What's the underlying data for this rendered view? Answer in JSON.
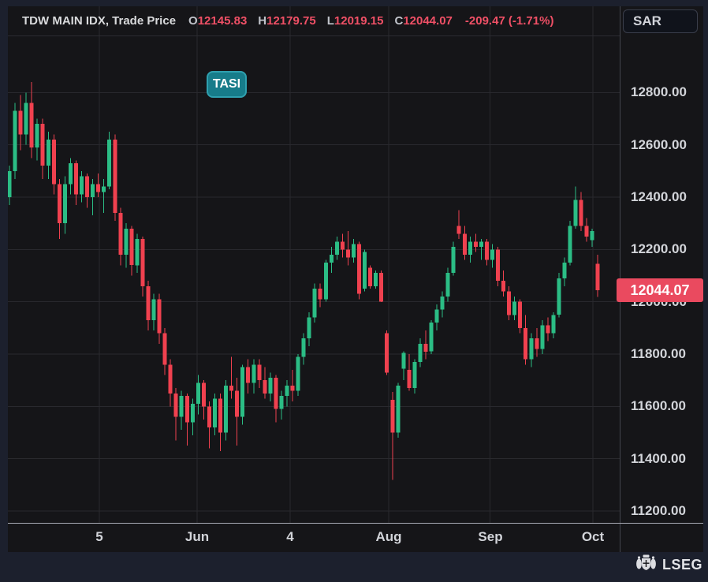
{
  "header": {
    "instrument": "TDW MAIN IDX, Trade Price",
    "ohlc": [
      {
        "key": "O",
        "value": "12145.83"
      },
      {
        "key": "H",
        "value": "12179.75"
      },
      {
        "key": "L",
        "value": "12019.15"
      },
      {
        "key": "C",
        "value": "12044.07"
      }
    ],
    "change": "-209.47 (-1.71%)"
  },
  "currency_chip": "SAR",
  "symbol_badge": "TASI",
  "price_label": "12044.07",
  "watermark": "LSEG",
  "colors": {
    "up": "#2bbd85",
    "down": "#f0414f",
    "grid": "#29292e",
    "plot_bg": "#151518",
    "outer_bg": "#1c202d",
    "price_label_bg": "#ea4a5f",
    "badge_teal": "#177c8a",
    "value_red": "#f05066",
    "axis_text": "#d2d4d9"
  },
  "chart_data": {
    "type": "candlestick",
    "title": "TDW MAIN IDX, Trade Price",
    "currency": "SAR",
    "legend": "TASI",
    "last_price": 12044.07,
    "last_price_label": "12044.07",
    "grid": true,
    "y_axis_position": "right",
    "y_ticks": [
      "12800.00",
      "12600.00",
      "12400.00",
      "12200.00",
      "12000.00",
      "11800.00",
      "11600.00",
      "11400.00",
      "11200.00"
    ],
    "y_tick_values": [
      12800,
      12600,
      12400,
      12200,
      12000,
      11800,
      11600,
      11400,
      11200
    ],
    "price_top": 13015,
    "price_bottom": 11155,
    "x_ticks": [
      {
        "label": "5",
        "i": 16.2
      },
      {
        "label": "Jun",
        "i": 33.8
      },
      {
        "label": "4",
        "i": 50.6
      },
      {
        "label": "Aug",
        "i": 68.3
      },
      {
        "label": "Sep",
        "i": 86.6
      },
      {
        "label": "Oct",
        "i": 105.1
      }
    ],
    "x_start": 2,
    "x_step": 7.04,
    "candle_width": 5,
    "candles_format": [
      "open",
      "high",
      "low",
      "close"
    ],
    "candles": [
      [
        12400,
        12520,
        12370,
        12500
      ],
      [
        12500,
        12760,
        12470,
        12730
      ],
      [
        12730,
        12790,
        12580,
        12640
      ],
      [
        12640,
        12800,
        12600,
        12760
      ],
      [
        12760,
        12840,
        12550,
        12590
      ],
      [
        12590,
        12700,
        12540,
        12680
      ],
      [
        12680,
        12700,
        12470,
        12520
      ],
      [
        12520,
        12650,
        12470,
        12620
      ],
      [
        12620,
        12640,
        12410,
        12450
      ],
      [
        12450,
        12470,
        12240,
        12300
      ],
      [
        12300,
        12480,
        12260,
        12450
      ],
      [
        12450,
        12550,
        12410,
        12530
      ],
      [
        12530,
        12540,
        12370,
        12410
      ],
      [
        12410,
        12500,
        12380,
        12480
      ],
      [
        12480,
        12490,
        12360,
        12400
      ],
      [
        12400,
        12470,
        12330,
        12450
      ],
      [
        12450,
        12490,
        12400,
        12420
      ],
      [
        12420,
        12470,
        12340,
        12440
      ],
      [
        12440,
        12650,
        12430,
        12620
      ],
      [
        12620,
        12640,
        12310,
        12340
      ],
      [
        12340,
        12360,
        12140,
        12180
      ],
      [
        12180,
        12300,
        12130,
        12280
      ],
      [
        12280,
        12290,
        12100,
        12140
      ],
      [
        12140,
        12260,
        12110,
        12240
      ],
      [
        12240,
        12250,
        12020,
        12060
      ],
      [
        12060,
        12080,
        11890,
        11930
      ],
      [
        11930,
        12030,
        11890,
        12010
      ],
      [
        12010,
        12030,
        11840,
        11880
      ],
      [
        11880,
        11900,
        11720,
        11760
      ],
      [
        11760,
        11780,
        11600,
        11650
      ],
      [
        11650,
        11670,
        11470,
        11560
      ],
      [
        11560,
        11660,
        11510,
        11640
      ],
      [
        11640,
        11650,
        11450,
        11540
      ],
      [
        11540,
        11630,
        11490,
        11610
      ],
      [
        11610,
        11720,
        11570,
        11690
      ],
      [
        11690,
        11700,
        11550,
        11600
      ],
      [
        11600,
        11620,
        11440,
        11520
      ],
      [
        11520,
        11650,
        11490,
        11630
      ],
      [
        11630,
        11650,
        11430,
        11500
      ],
      [
        11500,
        11700,
        11470,
        11680
      ],
      [
        11680,
        11790,
        11630,
        11660
      ],
      [
        11660,
        11710,
        11450,
        11560
      ],
      [
        11560,
        11760,
        11530,
        11750
      ],
      [
        11750,
        11780,
        11650,
        11690
      ],
      [
        11690,
        11780,
        11650,
        11760
      ],
      [
        11760,
        11780,
        11670,
        11700
      ],
      [
        11700,
        11750,
        11630,
        11650
      ],
      [
        11650,
        11730,
        11620,
        11710
      ],
      [
        11710,
        11720,
        11540,
        11590
      ],
      [
        11590,
        11660,
        11550,
        11640
      ],
      [
        11640,
        11700,
        11600,
        11680
      ],
      [
        11680,
        11740,
        11620,
        11660
      ],
      [
        11660,
        11800,
        11640,
        11790
      ],
      [
        11790,
        11880,
        11760,
        11860
      ],
      [
        11860,
        11960,
        11830,
        11940
      ],
      [
        11940,
        12070,
        11920,
        12050
      ],
      [
        12050,
        12070,
        11980,
        12010
      ],
      [
        12010,
        12160,
        12000,
        12150
      ],
      [
        12150,
        12210,
        12110,
        12180
      ],
      [
        12180,
        12250,
        12160,
        12230
      ],
      [
        12230,
        12260,
        12170,
        12200
      ],
      [
        12200,
        12270,
        12140,
        12170
      ],
      [
        12170,
        12240,
        12150,
        12220
      ],
      [
        12220,
        12230,
        12010,
        12030
      ],
      [
        12050,
        12200,
        12040,
        12190
      ],
      [
        12130,
        12140,
        12050,
        12060
      ],
      [
        12060,
        12120,
        12050,
        12110
      ],
      [
        12110,
        12120,
        11999,
        12000
      ],
      [
        11880,
        11890,
        11720,
        11730
      ],
      [
        11625,
        11655,
        11320,
        11500
      ],
      [
        11500,
        11690,
        11480,
        11680
      ],
      [
        11745,
        11810,
        11700,
        11805
      ],
      [
        11740,
        11800,
        11660,
        11670
      ],
      [
        11670,
        11780,
        11650,
        11770
      ],
      [
        11770,
        11860,
        11750,
        11840
      ],
      [
        11840,
        11890,
        11780,
        11810
      ],
      [
        11810,
        11930,
        11800,
        11920
      ],
      [
        11920,
        11990,
        11890,
        11970
      ],
      [
        11970,
        12040,
        11940,
        12020
      ],
      [
        12020,
        12130,
        12000,
        12110
      ],
      [
        12110,
        12230,
        12100,
        12210
      ],
      [
        12290,
        12350,
        12240,
        12260
      ],
      [
        12260,
        12290,
        12160,
        12180
      ],
      [
        12180,
        12250,
        12150,
        12230
      ],
      [
        12230,
        12260,
        12190,
        12210
      ],
      [
        12210,
        12240,
        12160,
        12230
      ],
      [
        12230,
        12240,
        12140,
        12160
      ],
      [
        12160,
        12220,
        12130,
        12200
      ],
      [
        12200,
        12210,
        12060,
        12080
      ],
      [
        12080,
        12120,
        12020,
        12040
      ],
      [
        12040,
        12060,
        11930,
        11950
      ],
      [
        11950,
        12020,
        11930,
        12000
      ],
      [
        12000,
        12010,
        11880,
        11900
      ],
      [
        11900,
        11950,
        11760,
        11780
      ],
      [
        11780,
        11880,
        11750,
        11860
      ],
      [
        11860,
        11900,
        11790,
        11820
      ],
      [
        11820,
        11930,
        11800,
        11910
      ],
      [
        11910,
        11940,
        11850,
        11880
      ],
      [
        11880,
        11960,
        11860,
        11950
      ],
      [
        11950,
        12110,
        11940,
        12090
      ],
      [
        12090,
        12170,
        12060,
        12150
      ],
      [
        12150,
        12310,
        12140,
        12290
      ],
      [
        12290,
        12440,
        12280,
        12390
      ],
      [
        12390,
        12420,
        12270,
        12290
      ],
      [
        12290,
        12320,
        12230,
        12250
      ],
      [
        12235,
        12280,
        12210,
        12270
      ],
      [
        12145.83,
        12179.75,
        12019.15,
        12044.07
      ]
    ]
  }
}
